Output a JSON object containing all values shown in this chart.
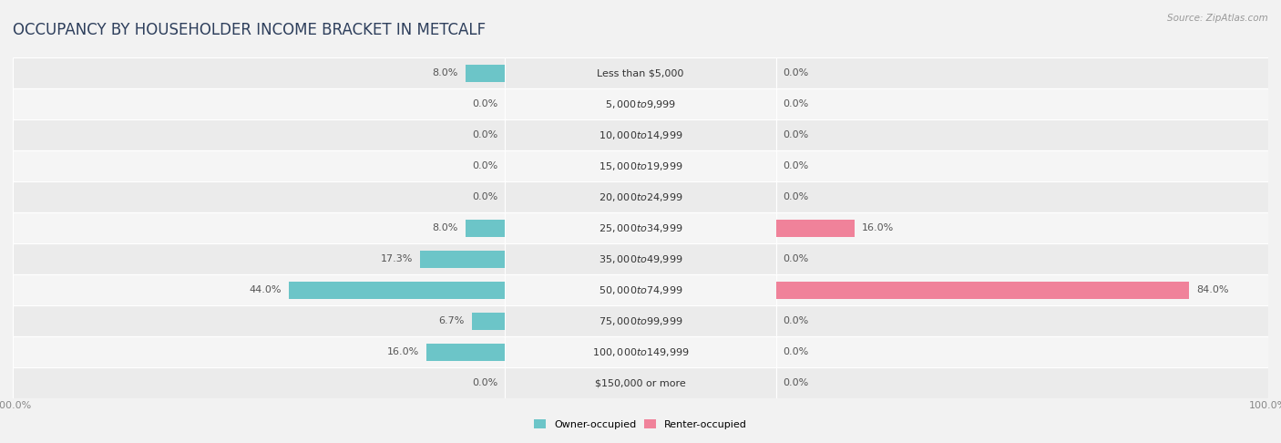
{
  "title": "OCCUPANCY BY HOUSEHOLDER INCOME BRACKET IN METCALF",
  "source": "Source: ZipAtlas.com",
  "categories": [
    "Less than $5,000",
    "$5,000 to $9,999",
    "$10,000 to $14,999",
    "$15,000 to $19,999",
    "$20,000 to $24,999",
    "$25,000 to $34,999",
    "$35,000 to $49,999",
    "$50,000 to $74,999",
    "$75,000 to $99,999",
    "$100,000 to $149,999",
    "$150,000 or more"
  ],
  "owner_pct": [
    8.0,
    0.0,
    0.0,
    0.0,
    0.0,
    8.0,
    17.3,
    44.0,
    6.7,
    16.0,
    0.0
  ],
  "renter_pct": [
    0.0,
    0.0,
    0.0,
    0.0,
    0.0,
    16.0,
    0.0,
    84.0,
    0.0,
    0.0,
    0.0
  ],
  "owner_color": "#6cc5c8",
  "renter_color": "#f0829a",
  "bg_color": "#f2f2f2",
  "row_even_color": "#ebebeb",
  "row_odd_color": "#f5f5f5",
  "title_color": "#2e3f5c",
  "label_color": "#555555",
  "source_color": "#999999",
  "max_val": 100.0,
  "bar_height": 0.55,
  "legend_owner": "Owner-occupied",
  "legend_renter": "Renter-occupied",
  "title_fontsize": 12,
  "label_fontsize": 8,
  "category_fontsize": 8,
  "axis_fontsize": 8
}
